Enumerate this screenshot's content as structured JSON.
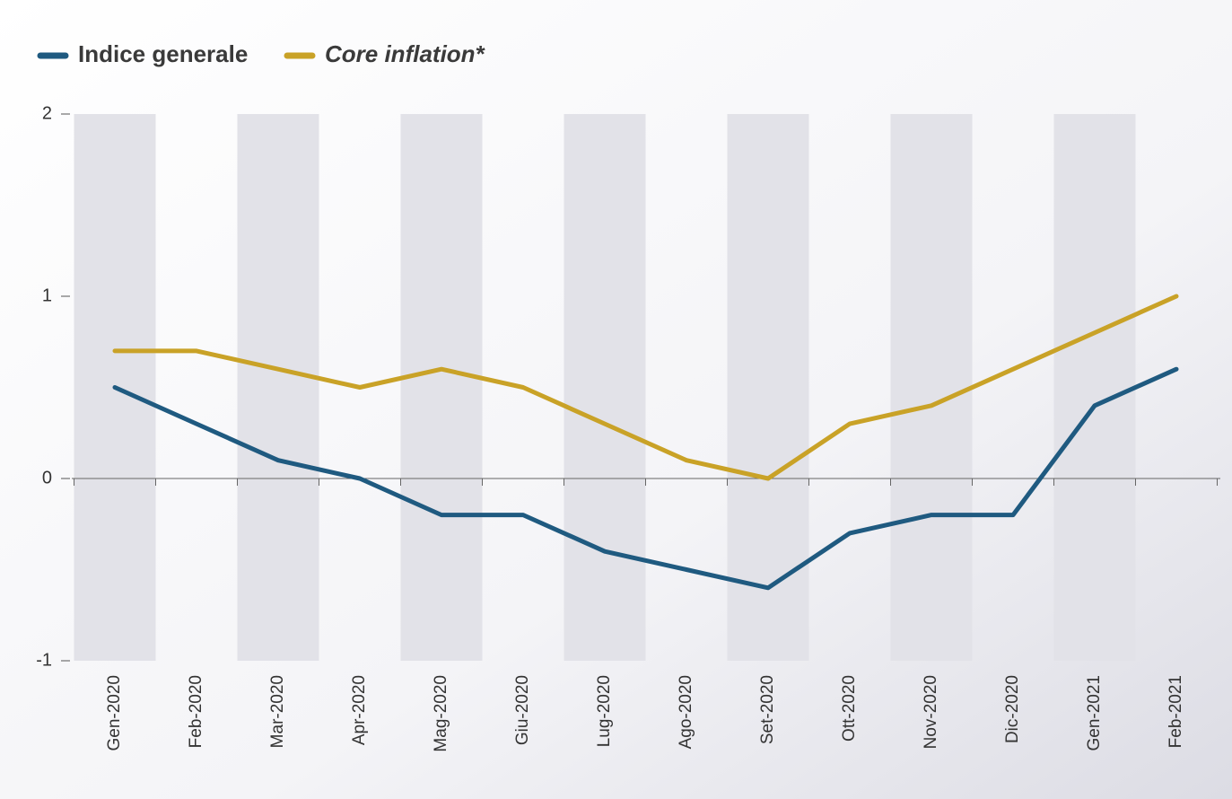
{
  "chart_data": {
    "type": "line",
    "categories": [
      "Gen-2020",
      "Feb-2020",
      "Mar-2020",
      "Apr-2020",
      "Mag-2020",
      "Giu-2020",
      "Lug-2020",
      "Ago-2020",
      "Set-2020",
      "Ott-2020",
      "Nov-2020",
      "Dic-2020",
      "Gen-2021",
      "Feb-2021"
    ],
    "series": [
      {
        "name": "Indice generale",
        "color": "#1f5a80",
        "values": [
          0.5,
          0.3,
          0.1,
          0.0,
          -0.2,
          -0.2,
          -0.4,
          -0.5,
          -0.6,
          -0.3,
          -0.2,
          -0.2,
          0.4,
          0.6
        ]
      },
      {
        "name": "Core inflation*",
        "color": "#c9a227",
        "values": [
          0.7,
          0.7,
          0.6,
          0.5,
          0.6,
          0.5,
          0.3,
          0.1,
          0.0,
          0.3,
          0.4,
          0.6,
          0.8,
          1.0
        ]
      }
    ],
    "ylim": [
      -1,
      2
    ],
    "yticks": [
      -1,
      0,
      1,
      2
    ],
    "legend": "top-left"
  }
}
